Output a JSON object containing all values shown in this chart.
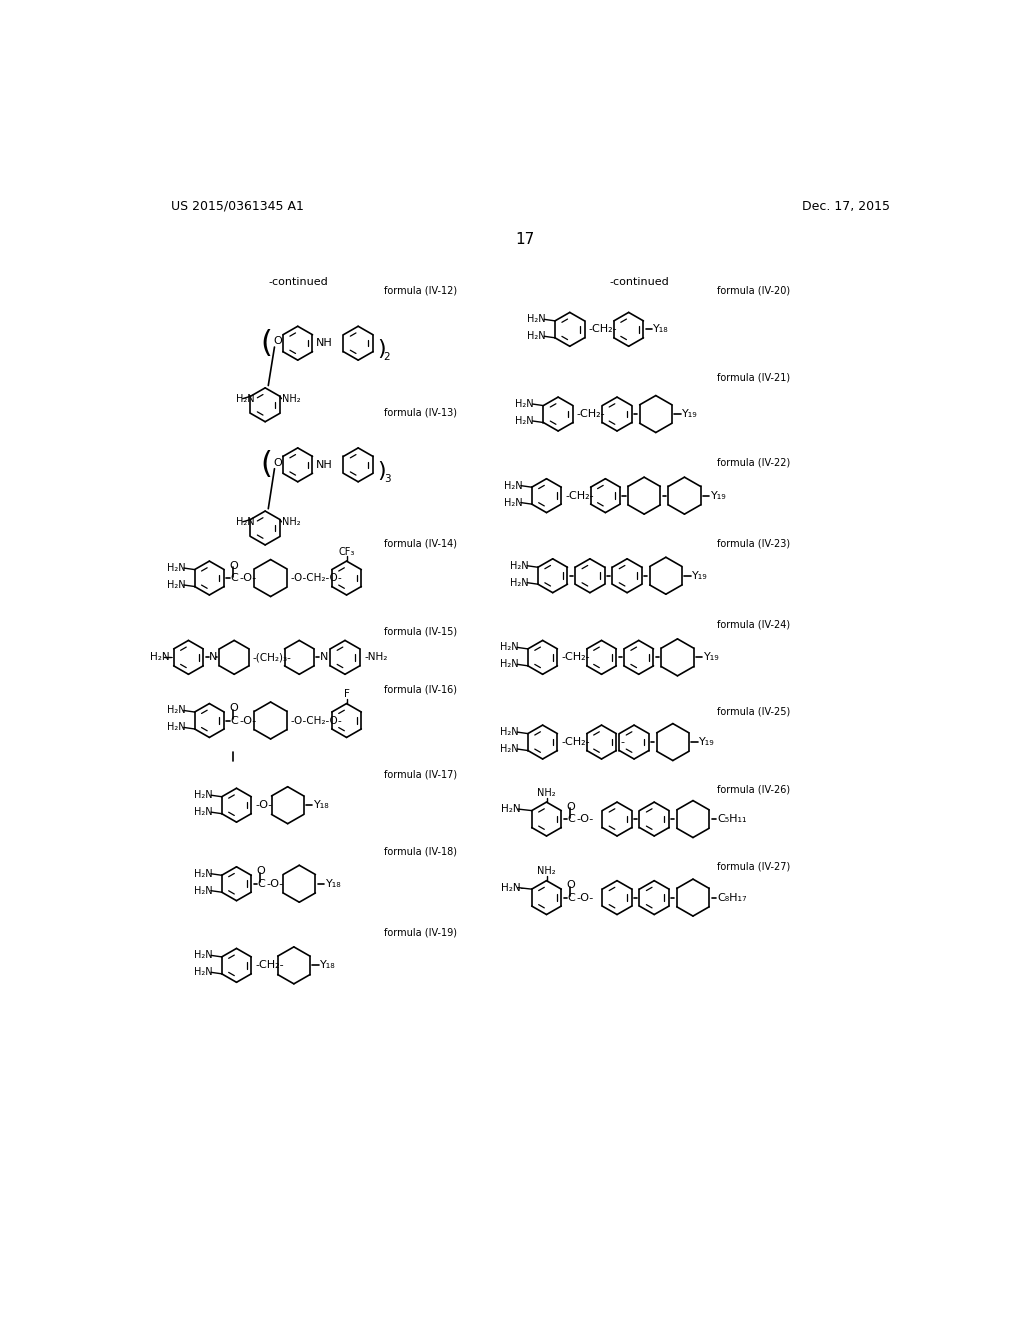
{
  "patent_number": "US 2015/0361345 A1",
  "patent_date": "Dec. 17, 2015",
  "page_number": "17",
  "bg": "#ffffff",
  "black": "#000000",
  "structures": {
    "iv12_label": "formula (IV-12)",
    "iv13_label": "formula (IV-13)",
    "iv14_label": "formula (IV-14)",
    "iv15_label": "formula (IV-15)",
    "iv16_label": "formula (IV-16)",
    "iv17_label": "formula (IV-17)",
    "iv18_label": "formula (IV-18)",
    "iv19_label": "formula (IV-19)",
    "iv20_label": "formula (IV-20)",
    "iv21_label": "formula (IV-21)",
    "iv22_label": "formula (IV-22)",
    "iv23_label": "formula (IV-23)",
    "iv24_label": "formula (IV-24)",
    "iv25_label": "formula (IV-25)",
    "iv26_label": "formula (IV-26)",
    "iv27_label": "formula (IV-27)"
  }
}
